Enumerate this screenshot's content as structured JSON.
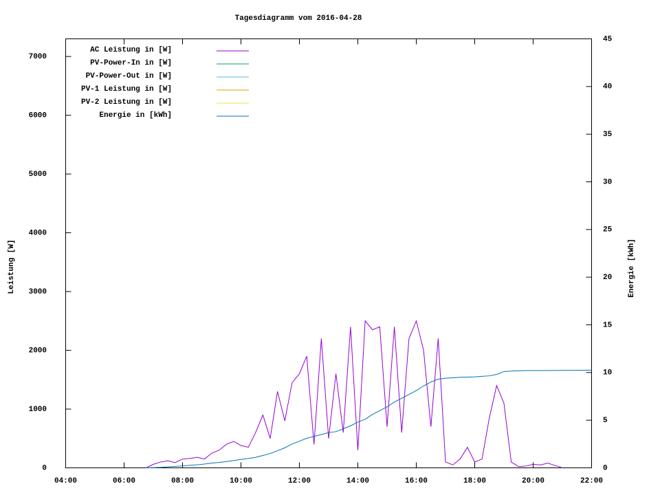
{
  "chart_data": {
    "type": "line",
    "title": "Tagesdiagramm vom 2016-04-28",
    "ylabel": "Leistung [W]",
    "y2label": "Energie [kWh]",
    "x": [
      "06:45",
      "07:00",
      "07:15",
      "07:30",
      "07:45",
      "08:00",
      "08:15",
      "08:30",
      "08:45",
      "09:00",
      "09:15",
      "09:30",
      "09:45",
      "10:00",
      "10:15",
      "10:30",
      "10:45",
      "11:00",
      "11:15",
      "11:30",
      "11:45",
      "12:00",
      "12:15",
      "12:30",
      "12:45",
      "13:00",
      "13:15",
      "13:30",
      "13:45",
      "14:00",
      "14:15",
      "14:30",
      "14:45",
      "15:00",
      "15:15",
      "15:30",
      "15:45",
      "16:00",
      "16:15",
      "16:30",
      "16:45",
      "17:00",
      "17:15",
      "17:30",
      "17:45",
      "18:00",
      "18:15",
      "18:30",
      "18:45",
      "19:00",
      "19:15",
      "19:30",
      "19:45",
      "20:00",
      "20:15",
      "20:30",
      "20:45",
      "21:00",
      "21:15",
      "21:30",
      "21:45",
      "22:00"
    ],
    "xlim": [
      "04:00",
      "22:00"
    ],
    "xticks": [
      "04:00",
      "06:00",
      "08:00",
      "10:00",
      "12:00",
      "14:00",
      "16:00",
      "18:00",
      "20:00",
      "22:00"
    ],
    "ylim": [
      0,
      7300
    ],
    "yticks": [
      0,
      1000,
      2000,
      3000,
      4000,
      5000,
      6000,
      7000
    ],
    "y2lim": [
      0,
      45
    ],
    "y2ticks": [
      0,
      5,
      10,
      15,
      20,
      25,
      30,
      35,
      40,
      45
    ],
    "legend": "top-left",
    "series": [
      {
        "name": "AC Leistung in [W]",
        "color": "#9400d3",
        "values": [
          0,
          60,
          100,
          120,
          90,
          150,
          160,
          180,
          150,
          250,
          300,
          400,
          450,
          380,
          350,
          600,
          900,
          500,
          1300,
          800,
          1450,
          1600,
          1900,
          400,
          2200,
          500,
          1600,
          600,
          2400,
          300,
          2500,
          2350,
          2400,
          700,
          2400,
          600,
          2200,
          2500,
          2000,
          700,
          2200,
          100,
          50,
          150,
          350,
          100,
          150,
          850,
          1400,
          1100,
          100,
          20,
          30,
          60,
          50,
          80,
          40,
          0,
          null,
          null,
          null,
          null
        ]
      },
      {
        "name": "PV-Power-In in [W]",
        "color": "#009e73",
        "values": [
          null,
          null,
          null,
          null,
          null,
          null,
          null,
          null,
          null,
          null,
          null,
          null,
          null,
          null,
          null,
          null,
          null,
          null,
          null,
          null,
          null,
          null,
          null,
          null,
          null,
          null,
          null,
          null,
          null,
          null,
          null,
          null,
          null,
          null,
          null,
          null,
          null,
          null,
          null,
          null,
          null,
          null,
          null,
          null,
          null,
          null,
          null,
          null,
          null,
          null,
          null,
          null,
          null,
          null,
          null,
          null,
          null,
          null,
          null,
          null,
          null,
          null
        ]
      },
      {
        "name": "PV-Power-Out in [W]",
        "color": "#56b4e9",
        "values": [
          null,
          null,
          null,
          null,
          null,
          null,
          null,
          null,
          null,
          null,
          null,
          null,
          null,
          null,
          null,
          null,
          null,
          null,
          null,
          null,
          null,
          null,
          null,
          null,
          null,
          null,
          null,
          null,
          null,
          null,
          null,
          null,
          null,
          null,
          null,
          null,
          null,
          null,
          null,
          null,
          null,
          null,
          null,
          null,
          null,
          null,
          null,
          null,
          null,
          null,
          null,
          null,
          null,
          null,
          null,
          null,
          null,
          null,
          null,
          null,
          null,
          null
        ]
      },
      {
        "name": "PV-1 Leistung in [W]",
        "color": "#e69f00",
        "values": [
          null,
          null,
          null,
          null,
          null,
          null,
          null,
          null,
          null,
          null,
          null,
          null,
          null,
          null,
          null,
          null,
          null,
          null,
          null,
          null,
          null,
          null,
          null,
          null,
          null,
          null,
          null,
          null,
          null,
          null,
          null,
          null,
          null,
          null,
          null,
          null,
          null,
          null,
          null,
          null,
          null,
          null,
          null,
          null,
          null,
          null,
          null,
          null,
          null,
          null,
          null,
          null,
          null,
          null,
          null,
          null,
          null,
          null,
          null,
          null,
          null,
          null
        ]
      },
      {
        "name": "PV-2 Leistung in [W]",
        "color": "#f0e442",
        "values": [
          null,
          null,
          null,
          null,
          null,
          null,
          null,
          null,
          null,
          null,
          null,
          null,
          null,
          null,
          null,
          null,
          null,
          null,
          null,
          null,
          null,
          null,
          null,
          null,
          null,
          null,
          null,
          null,
          null,
          null,
          null,
          null,
          null,
          null,
          null,
          null,
          null,
          null,
          null,
          null,
          null,
          null,
          null,
          null,
          null,
          null,
          null,
          null,
          null,
          null,
          null,
          null,
          null,
          null,
          null,
          null,
          null,
          null,
          null,
          null,
          null,
          null
        ]
      },
      {
        "name": "Energie in [kWh]",
        "color": "#0072b2",
        "axis": "y2",
        "values": [
          0,
          0.02,
          0.05,
          0.1,
          0.15,
          0.2,
          0.26,
          0.32,
          0.4,
          0.5,
          0.57,
          0.66,
          0.77,
          0.88,
          0.98,
          1.1,
          1.3,
          1.5,
          1.8,
          2.1,
          2.5,
          2.8,
          3.1,
          3.3,
          3.5,
          3.7,
          3.8,
          4.1,
          4.4,
          4.8,
          5.1,
          5.6,
          6.0,
          6.4,
          6.9,
          7.3,
          7.7,
          8.1,
          8.6,
          9.0,
          9.3,
          9.4,
          9.45,
          9.5,
          9.52,
          9.55,
          9.6,
          9.65,
          9.8,
          10.1,
          10.15,
          10.18,
          10.2,
          10.2,
          10.2,
          10.21,
          10.21,
          10.22,
          10.22,
          10.23,
          10.24,
          10.25
        ]
      }
    ]
  }
}
